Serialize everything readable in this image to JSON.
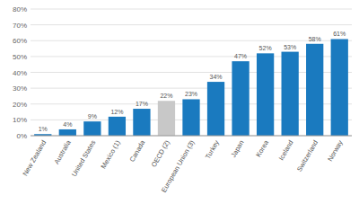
{
  "chart_data": {
    "type": "bar",
    "categories": [
      "New Zealand",
      "Australia",
      "United States",
      "Mexico (1)",
      "Canada",
      "OECD (2)",
      "European Union (3)",
      "Turkey",
      "Japan",
      "Korea",
      "Iceland",
      "Switzerland",
      "Norway"
    ],
    "values": [
      1,
      4,
      9,
      12,
      17,
      22,
      23,
      34,
      47,
      52,
      53,
      58,
      61
    ],
    "value_labels": [
      "1%",
      "4%",
      "9%",
      "12%",
      "17%",
      "22%",
      "23%",
      "34%",
      "47%",
      "52%",
      "53%",
      "58%",
      "61%"
    ],
    "data_labels": true,
    "colors": [
      "#1a7abf",
      "#1a7abf",
      "#1a7abf",
      "#1a7abf",
      "#1a7abf",
      "#c8c8c8",
      "#1a7abf",
      "#1a7abf",
      "#1a7abf",
      "#1a7abf",
      "#1a7abf",
      "#1a7abf",
      "#1a7abf"
    ],
    "ylim": [
      0,
      80
    ],
    "yticks": [
      {
        "value": 0,
        "label": "0%"
      },
      {
        "value": 10,
        "label": "10%"
      },
      {
        "value": 20,
        "label": "20%"
      },
      {
        "value": 30,
        "label": "30%"
      },
      {
        "value": 40,
        "label": "40%"
      },
      {
        "value": 50,
        "label": "50%"
      },
      {
        "value": 60,
        "label": "60%"
      },
      {
        "value": 70,
        "label": "70%"
      },
      {
        "value": 80,
        "label": "80%"
      }
    ],
    "grid": true
  }
}
